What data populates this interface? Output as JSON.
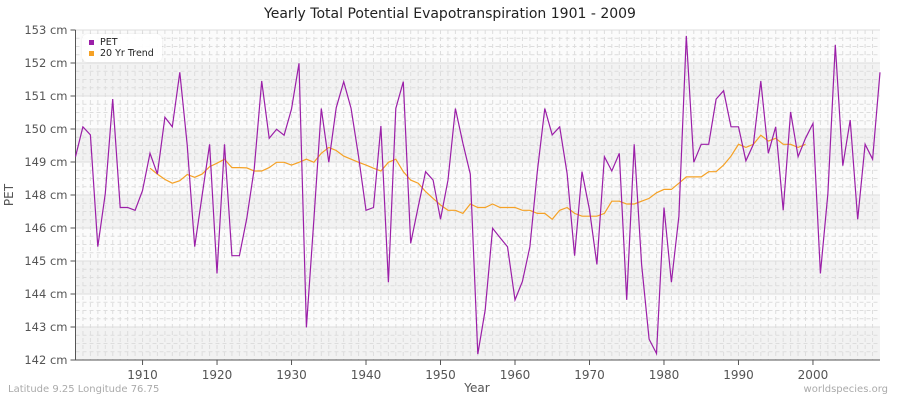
{
  "title": "Yearly Total Potential Evapotranspiration 1901 - 2009",
  "footer": {
    "location": "Latitude 9.25 Longitude 76.75",
    "source": "worldspecies.org"
  },
  "legend": {
    "items": [
      {
        "label": "PET",
        "color": "#9b1fa8"
      },
      {
        "label": "20 Yr Trend",
        "color": "#f5a125"
      }
    ]
  },
  "colors": {
    "pet": "#9b1fa8",
    "trend": "#f5a125",
    "band": "#f2f2f2",
    "grid": "#dddddd",
    "axis": "#555555"
  },
  "chart_data": {
    "type": "line",
    "title": "Yearly Total Potential Evapotranspiration 1901 - 2009",
    "xlabel": "Year",
    "ylabel": "PET",
    "xlim": [
      1901,
      2009
    ],
    "ylim": [
      142.2,
      152.8
    ],
    "grid": true,
    "legend_position": "top-left",
    "x_ticks": [
      1910,
      1920,
      1930,
      1940,
      1950,
      1960,
      1970,
      1980,
      1990,
      2000
    ],
    "y_tick_labels": [
      "153 cm",
      "152 cm",
      "151 cm",
      "150 cm",
      "149 cm",
      "148 cm",
      "146 cm",
      "145 cm",
      "144 cm",
      "143 cm",
      "142 cm"
    ],
    "series": [
      {
        "name": "PET",
        "start_year": 1901,
        "values": [
          148.73,
          149.69,
          149.43,
          145.84,
          147.55,
          150.58,
          147.1,
          147.1,
          147.01,
          147.64,
          148.84,
          148.17,
          150.0,
          149.69,
          151.44,
          149.11,
          145.84,
          147.48,
          149.13,
          144.98,
          149.13,
          145.55,
          145.55,
          146.75,
          148.36,
          151.16,
          149.32,
          149.61,
          149.42,
          150.26,
          151.73,
          143.25,
          146.72,
          150.28,
          148.55,
          150.3,
          151.14,
          150.28,
          148.73,
          147.01,
          147.1,
          149.72,
          144.7,
          150.28,
          151.14,
          145.95,
          147.12,
          148.25,
          147.98,
          146.72,
          147.98,
          150.28,
          149.16,
          148.17,
          142.39,
          143.81,
          146.43,
          146.13,
          145.84,
          144.13,
          144.72,
          145.84,
          148.25,
          150.28,
          149.43,
          149.69,
          148.19,
          145.55,
          148.25,
          147.02,
          145.27,
          148.73,
          148.27,
          148.84,
          144.13,
          149.13,
          145.27,
          142.87,
          142.41,
          147.1,
          144.7,
          146.82,
          152.61,
          148.55,
          149.13,
          149.13,
          150.58,
          150.85,
          149.69,
          149.69,
          148.6,
          149.13,
          151.16,
          148.84,
          149.69,
          147.01,
          150.17,
          148.73,
          149.32,
          149.8,
          144.98,
          147.55,
          152.32,
          148.44,
          149.91,
          146.72,
          149.13,
          148.65,
          151.44
        ]
      },
      {
        "name": "20 Yr Trend",
        "start_year": 1911,
        "values": [
          148.36,
          148.17,
          148.0,
          147.88,
          147.96,
          148.16,
          148.07,
          148.17,
          148.41,
          148.52,
          148.65,
          148.38,
          148.38,
          148.37,
          148.27,
          148.27,
          148.38,
          148.55,
          148.55,
          148.46,
          148.55,
          148.65,
          148.55,
          148.84,
          149.03,
          148.93,
          148.75,
          148.65,
          148.55,
          148.46,
          148.36,
          148.27,
          148.55,
          148.65,
          148.25,
          147.98,
          147.88,
          147.61,
          147.39,
          147.18,
          147.01,
          147.01,
          146.91,
          147.21,
          147.1,
          147.1,
          147.21,
          147.1,
          147.1,
          147.1,
          147.01,
          147.01,
          146.91,
          146.91,
          146.72,
          147.01,
          147.1,
          146.91,
          146.82,
          146.82,
          146.82,
          146.91,
          147.3,
          147.3,
          147.21,
          147.21,
          147.3,
          147.39,
          147.57,
          147.68,
          147.68,
          147.88,
          148.08,
          148.08,
          148.08,
          148.25,
          148.25,
          148.46,
          148.75,
          149.13,
          149.03,
          149.13,
          149.42,
          149.23,
          149.32,
          149.13,
          149.13,
          149.03,
          149.13
        ]
      }
    ]
  }
}
